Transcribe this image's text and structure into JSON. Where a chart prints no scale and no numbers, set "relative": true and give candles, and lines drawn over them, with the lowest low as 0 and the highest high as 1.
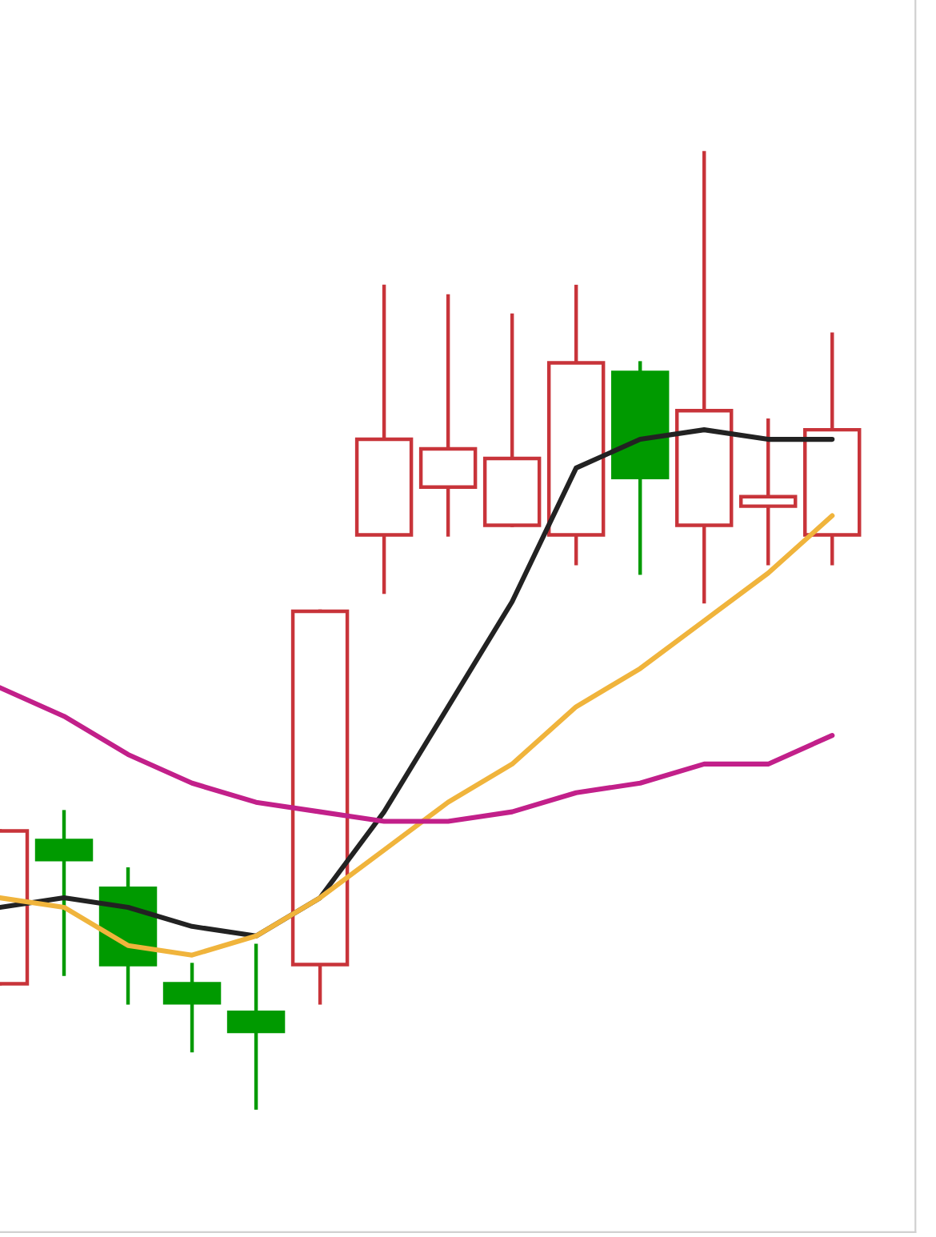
{
  "chart_data": {
    "type": "candlestick",
    "relative": true,
    "categories": [
      null,
      null,
      null,
      null,
      null,
      null,
      null,
      null,
      null,
      null,
      null,
      null,
      null,
      null
    ],
    "ohlc": [
      [
        0.13,
        0.29,
        0.13,
        0.29
      ],
      [
        0.28,
        0.31,
        0.14,
        0.26
      ],
      [
        0.23,
        0.25,
        0.11,
        0.15
      ],
      [
        0.13,
        0.15,
        0.06,
        0.11
      ],
      [
        0.1,
        0.17,
        0.0,
        0.08
      ],
      [
        0.15,
        0.52,
        0.11,
        0.52
      ],
      [
        0.6,
        0.86,
        0.54,
        0.7
      ],
      [
        0.65,
        0.85,
        0.6,
        0.69
      ],
      [
        0.61,
        0.83,
        0.61,
        0.68
      ],
      [
        0.6,
        0.86,
        0.57,
        0.78
      ],
      [
        0.77,
        0.78,
        0.56,
        0.66
      ],
      [
        0.61,
        1.0,
        0.53,
        0.73
      ],
      [
        0.63,
        0.72,
        0.57,
        0.64
      ],
      [
        0.6,
        0.81,
        0.57,
        0.71
      ]
    ],
    "colors": [
      "#c8343a",
      "#009a00",
      "#009a00",
      "#009a00",
      "#009a00",
      "#c8343a",
      "#c8343a",
      "#c8343a",
      "#c8343a",
      "#c8343a",
      "#009a00",
      "#c8343a",
      "#c8343a",
      "#c8343a"
    ],
    "series": [
      {
        "type": "line",
        "color": "#222222",
        "values": [
          0.21,
          0.22,
          0.21,
          0.19,
          0.18,
          0.22,
          0.31,
          0.42,
          0.53,
          0.67,
          0.7,
          0.71,
          0.7,
          0.7
        ]
      },
      {
        "type": "line",
        "color": "#f0b43c",
        "values": [
          0.22,
          0.21,
          0.17,
          0.16,
          0.18,
          0.22,
          0.27,
          0.32,
          0.36,
          0.42,
          0.46,
          0.51,
          0.56,
          0.62
        ]
      },
      {
        "type": "line",
        "color": "#c2208a",
        "values": [
          0.44,
          0.41,
          0.37,
          0.34,
          0.32,
          0.31,
          0.3,
          0.3,
          0.31,
          0.33,
          0.34,
          0.36,
          0.36,
          0.39
        ]
      }
    ]
  }
}
